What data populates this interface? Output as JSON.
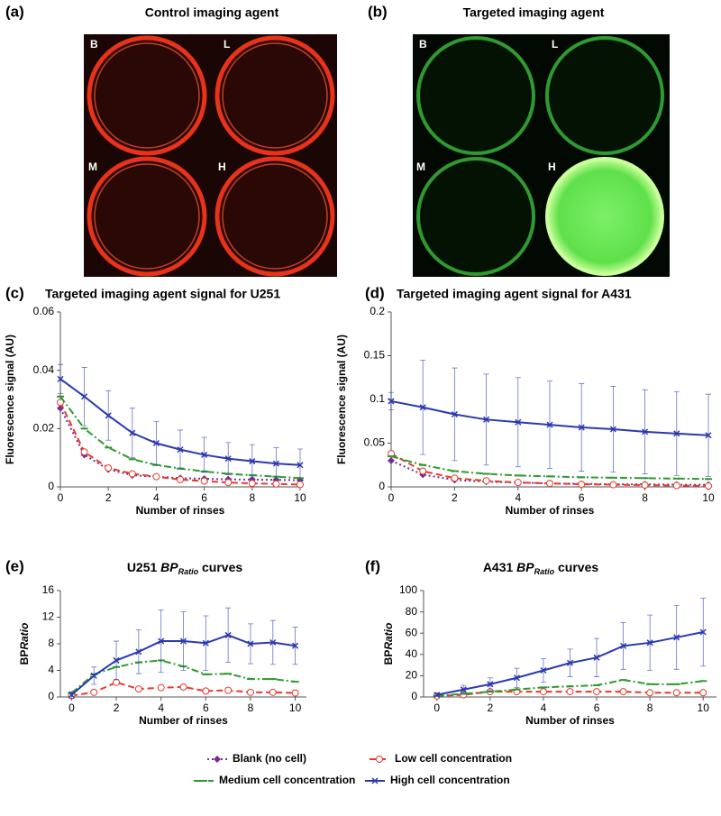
{
  "panels": [
    {
      "label": "(a)",
      "title": "Control imaging agent",
      "wells": [
        "B",
        "L",
        "M",
        "H"
      ]
    },
    {
      "label": "(b)",
      "title": "Targeted imaging agent",
      "wells": [
        "B",
        "L",
        "M",
        "H"
      ]
    }
  ],
  "chart_data": [
    {
      "type": "line",
      "label": "(c)",
      "title": "Targeted imaging agent signal for U251",
      "xlabel": "Number of rinses",
      "ylabel": "Fluorescence signal (AU)",
      "x": [
        0,
        1,
        2,
        3,
        4,
        5,
        6,
        7,
        8,
        9,
        10
      ],
      "xlim": [
        0,
        10
      ],
      "xticks": [
        0,
        2,
        4,
        6,
        8,
        10
      ],
      "ylim": [
        0,
        0.06
      ],
      "yticks": [
        0,
        0.02,
        0.04,
        0.06
      ],
      "series": [
        {
          "name": "Blank (no cell)",
          "color": "#7b2d8e",
          "linestyle": "dotted",
          "marker": "diamond",
          "values": [
            0.027,
            0.011,
            0.006,
            0.004,
            0.0035,
            0.003,
            0.0028,
            0.0026,
            0.0025,
            0.0024,
            0.0023
          ]
        },
        {
          "name": "Low cell concentration",
          "color": "#e8392b",
          "linestyle": "dashed",
          "marker": "circle",
          "values": [
            0.029,
            0.012,
            0.0065,
            0.0045,
            0.0035,
            0.0025,
            0.002,
            0.0015,
            0.0012,
            0.001,
            0.0008
          ]
        },
        {
          "name": "Medium cell concentration",
          "color": "#2e9a2e",
          "linestyle": "dashdot",
          "marker": "dash",
          "values": [
            0.031,
            0.02,
            0.0135,
            0.0095,
            0.0075,
            0.0063,
            0.0053,
            0.0045,
            0.004,
            0.0035,
            0.003
          ]
        },
        {
          "name": "High cell concentration",
          "color": "#2a39b0",
          "linestyle": "solid",
          "marker": "x",
          "values": [
            0.037,
            0.031,
            0.0245,
            0.0185,
            0.015,
            0.0128,
            0.011,
            0.0097,
            0.0088,
            0.008,
            0.0075
          ],
          "errors": [
            0.005,
            0.01,
            0.0085,
            0.0085,
            0.0075,
            0.0067,
            0.006,
            0.0055,
            0.0057,
            0.0055,
            0.0055
          ]
        }
      ]
    },
    {
      "type": "line",
      "label": "(d)",
      "title": "Targeted imaging agent signal for A431",
      "xlabel": "Number of rinses",
      "ylabel": "Fluorescence signal (AU)",
      "x": [
        0,
        1,
        2,
        3,
        4,
        5,
        6,
        7,
        8,
        9,
        10
      ],
      "xlim": [
        0,
        10
      ],
      "xticks": [
        0,
        2,
        4,
        6,
        8,
        10
      ],
      "ylim": [
        0,
        0.2
      ],
      "yticks": [
        0,
        0.05,
        0.1,
        0.15,
        0.2
      ],
      "series": [
        {
          "name": "Blank (no cell)",
          "color": "#7b2d8e",
          "linestyle": "dotted",
          "marker": "diamond",
          "values": [
            0.03,
            0.014,
            0.008,
            0.006,
            0.005,
            0.004,
            0.0035,
            0.003,
            0.003,
            0.0025,
            0.0025
          ]
        },
        {
          "name": "Low cell concentration",
          "color": "#e8392b",
          "linestyle": "dashed",
          "marker": "circle",
          "values": [
            0.038,
            0.018,
            0.01,
            0.007,
            0.005,
            0.004,
            0.003,
            0.0025,
            0.002,
            0.0015,
            0.001
          ]
        },
        {
          "name": "Medium cell concentration",
          "color": "#2e9a2e",
          "linestyle": "dashdot",
          "marker": "dash",
          "values": [
            0.035,
            0.025,
            0.018,
            0.015,
            0.013,
            0.012,
            0.011,
            0.0105,
            0.01,
            0.0095,
            0.009
          ]
        },
        {
          "name": "High cell concentration",
          "color": "#2a39b0",
          "linestyle": "solid",
          "marker": "x",
          "values": [
            0.098,
            0.091,
            0.083,
            0.077,
            0.074,
            0.071,
            0.068,
            0.066,
            0.063,
            0.061,
            0.059
          ],
          "errors": [
            0.01,
            0.054,
            0.053,
            0.052,
            0.051,
            0.05,
            0.05,
            0.049,
            0.048,
            0.048,
            0.047
          ]
        }
      ]
    },
    {
      "type": "line",
      "label": "(e)",
      "title": [
        "U251 ",
        "BP",
        "Ratio",
        " curves"
      ],
      "xlabel": "Number of rinses",
      "ylabel": [
        "BP",
        "Ratio"
      ],
      "x": [
        0,
        1,
        2,
        3,
        4,
        5,
        6,
        7,
        8,
        9,
        10
      ],
      "xlim": [
        -0.5,
        10.5
      ],
      "xticks": [
        0,
        2,
        4,
        6,
        8,
        10
      ],
      "ylim": [
        0,
        16
      ],
      "yticks": [
        0,
        4,
        8,
        12,
        16
      ],
      "series": [
        {
          "name": "Low cell concentration",
          "color": "#e8392b",
          "linestyle": "dashed",
          "marker": "circle",
          "values": [
            0.2,
            0.7,
            2.2,
            1.2,
            1.4,
            1.5,
            0.9,
            1,
            0.7,
            0.7,
            0.6
          ]
        },
        {
          "name": "Medium cell concentration",
          "color": "#2e9a2e",
          "linestyle": "dashdot",
          "marker": "dash",
          "values": [
            0.6,
            3.4,
            4.5,
            5.2,
            5.5,
            4.6,
            3.4,
            3.5,
            2.7,
            2.7,
            2.3
          ]
        },
        {
          "name": "High cell concentration",
          "color": "#2a39b0",
          "linestyle": "solid",
          "marker": "x",
          "values": [
            0.3,
            3.2,
            5.5,
            6.8,
            8.4,
            8.4,
            8.1,
            9.3,
            8,
            8.2,
            7.7
          ],
          "errors": [
            0.5,
            1.3,
            2.9,
            3.3,
            4.7,
            4.4,
            4.1,
            4.1,
            3,
            3.3,
            2.8
          ]
        }
      ]
    },
    {
      "type": "line",
      "label": "(f)",
      "title": [
        "A431 ",
        "BP",
        "Ratio",
        " curves"
      ],
      "xlabel": "Number of rinses",
      "ylabel": [
        "BP",
        "Ratio"
      ],
      "x": [
        0,
        1,
        2,
        3,
        4,
        5,
        6,
        7,
        8,
        9,
        10
      ],
      "xlim": [
        -0.5,
        10.5
      ],
      "xticks": [
        0,
        2,
        4,
        6,
        8,
        10
      ],
      "ylim": [
        0,
        100
      ],
      "yticks": [
        0,
        20,
        40,
        60,
        80,
        100
      ],
      "series": [
        {
          "name": "Low cell concentration",
          "color": "#e8392b",
          "linestyle": "dashed",
          "marker": "circle",
          "values": [
            1,
            2,
            5,
            5,
            5,
            5,
            5,
            5,
            4,
            4,
            4
          ]
        },
        {
          "name": "Medium cell concentration",
          "color": "#2e9a2e",
          "linestyle": "dashdot",
          "marker": "dash",
          "values": [
            1,
            3,
            5,
            7,
            9,
            10,
            11,
            16,
            12,
            12,
            15
          ]
        },
        {
          "name": "High cell concentration",
          "color": "#2a39b0",
          "linestyle": "solid",
          "marker": "x",
          "values": [
            2,
            7,
            12,
            18,
            25,
            32,
            37,
            48,
            51,
            56,
            61
          ],
          "errors": [
            1,
            4,
            6,
            9,
            11,
            13,
            18,
            22,
            26,
            30,
            32
          ]
        }
      ]
    }
  ]
}
